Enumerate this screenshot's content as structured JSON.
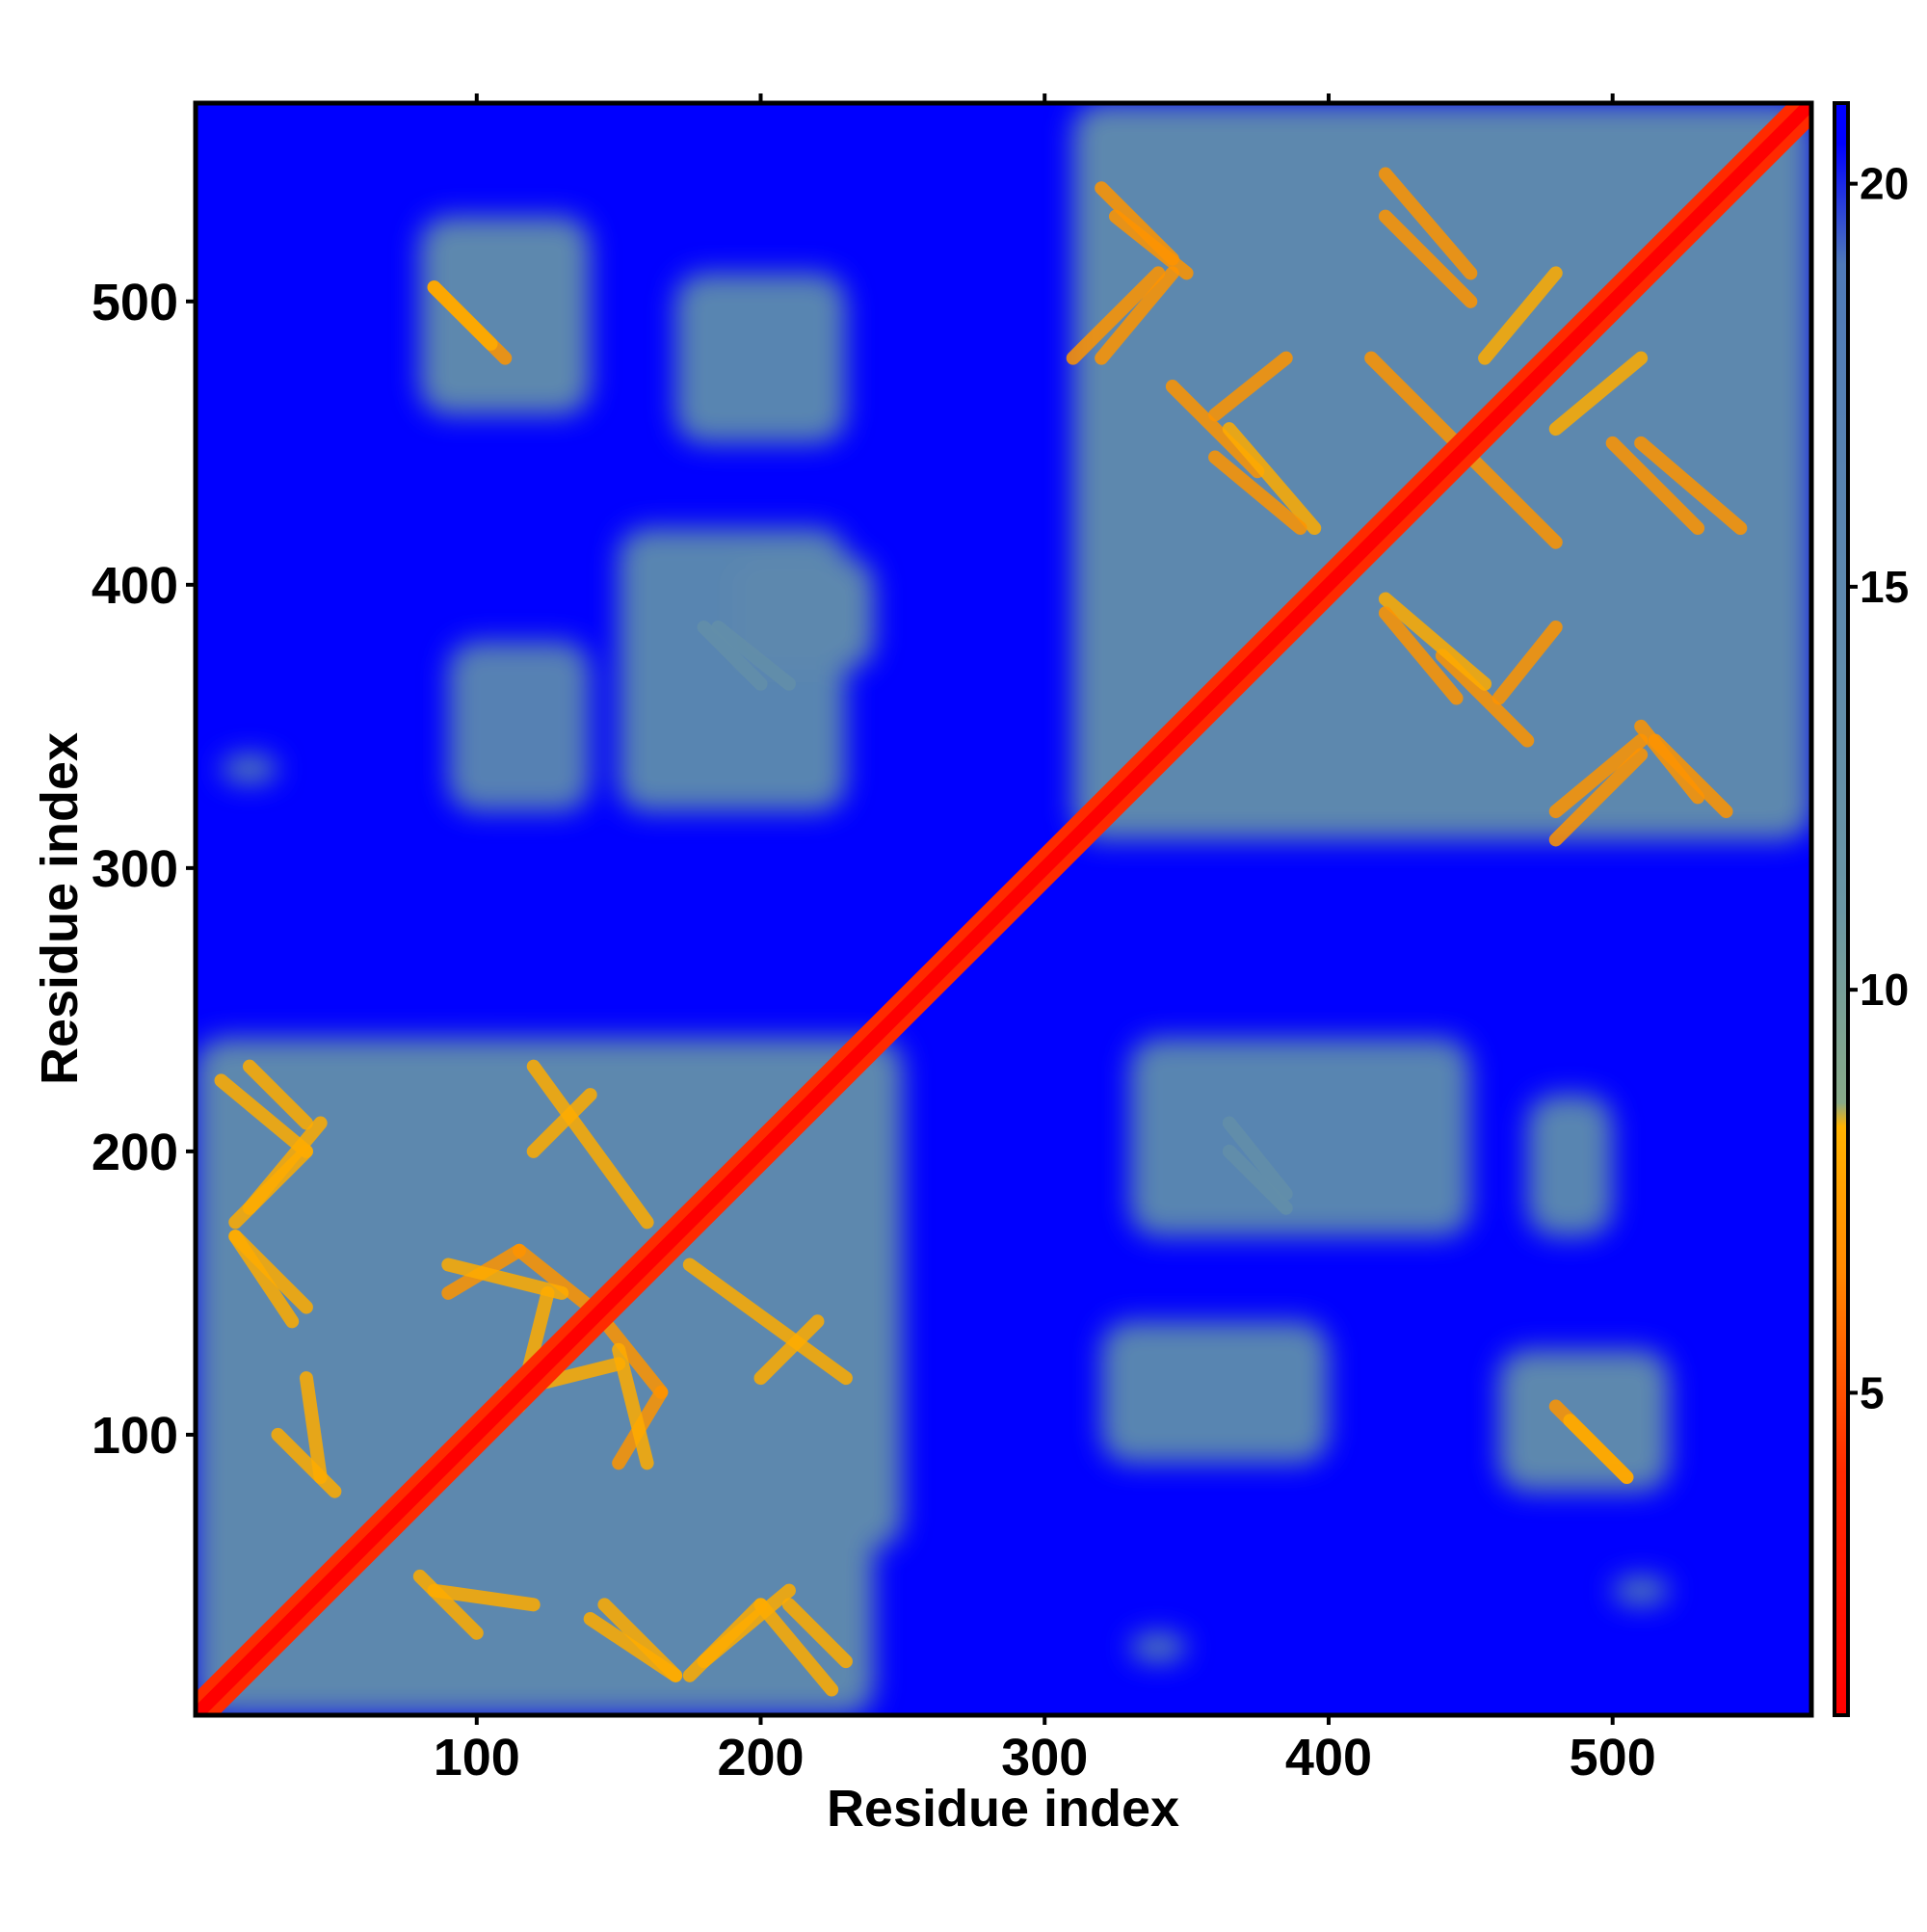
{
  "chart_data": {
    "type": "heatmap",
    "title": "",
    "xlabel": "Residue index",
    "ylabel": "Residue index",
    "xlim": [
      1,
      570
    ],
    "ylim": [
      1,
      570
    ],
    "x_ticks": [
      100,
      200,
      300,
      400,
      500
    ],
    "y_ticks": [
      100,
      200,
      300,
      400,
      500
    ],
    "colorbar": {
      "range": [
        1,
        21
      ],
      "ticks": [
        5,
        10,
        15,
        20
      ],
      "colors": [
        {
          "value": 1,
          "color": "#ff0000"
        },
        {
          "value": 4,
          "color": "#ff2a00"
        },
        {
          "value": 6.5,
          "color": "#ff8800"
        },
        {
          "value": 8.3,
          "color": "#ffb300"
        },
        {
          "value": 8.6,
          "color": "#88aa88"
        },
        {
          "value": 11,
          "color": "#6a96a4"
        },
        {
          "value": 19,
          "color": "#4f7ab8"
        },
        {
          "value": 20.5,
          "color": "#0000ff"
        },
        {
          "value": 21,
          "color": "#0000ff"
        }
      ]
    },
    "background_color": "#0000ff",
    "diagonal": {
      "start": 1,
      "end": 570,
      "core_value": 1,
      "band_value": 4
    },
    "contact_blocks": [
      {
        "x": [
          1,
          240
        ],
        "y": [
          1,
          240
        ],
        "value": 15
      },
      {
        "x": [
          310,
          570
        ],
        "y": [
          310,
          570
        ],
        "value": 15
      },
      {
        "x": [
          330,
          500
        ],
        "y": [
          380,
          550
        ],
        "value": 15
      },
      {
        "x": [
          410,
          570
        ],
        "y": [
          310,
          450
        ],
        "value": 15
      },
      {
        "x": [
          80,
          250
        ],
        "y": [
          60,
          240
        ],
        "value": 15
      },
      {
        "x": [
          1,
          120
        ],
        "y": [
          80,
          240
        ],
        "value": 15
      },
      {
        "x": [
          80,
          240
        ],
        "y": [
          1,
          60
        ],
        "value": 15
      },
      {
        "x": [
          80,
          140
        ],
        "y": [
          460,
          530
        ],
        "value": 15
      },
      {
        "x": [
          170,
          230
        ],
        "y": [
          450,
          510
        ],
        "value": 16
      },
      {
        "x": [
          90,
          140
        ],
        "y": [
          320,
          380
        ],
        "value": 17
      },
      {
        "x": [
          150,
          230
        ],
        "y": [
          320,
          420
        ],
        "value": 16
      },
      {
        "x": [
          190,
          240
        ],
        "y": [
          370,
          410
        ],
        "value": 15
      },
      {
        "x": [
          10,
          30
        ],
        "y": [
          330,
          340
        ],
        "value": 17
      },
      {
        "x": [
          320,
          400
        ],
        "y": [
          90,
          140
        ],
        "value": 16
      },
      {
        "x": [
          330,
          450
        ],
        "y": [
          170,
          240
        ],
        "value": 16
      },
      {
        "x": [
          460,
          520
        ],
        "y": [
          80,
          130
        ],
        "value": 15
      },
      {
        "x": [
          470,
          500
        ],
        "y": [
          170,
          220
        ],
        "value": 16
      },
      {
        "x": [
          330,
          350
        ],
        "y": [
          20,
          30
        ],
        "value": 17
      },
      {
        "x": [
          500,
          520
        ],
        "y": [
          40,
          50
        ],
        "value": 18
      }
    ],
    "contact_lines": [
      {
        "x1": 10,
        "y1": 225,
        "x2": 40,
        "y2": 200,
        "value": 8
      },
      {
        "x1": 40,
        "y1": 200,
        "x2": 15,
        "y2": 175,
        "value": 8
      },
      {
        "x1": 15,
        "y1": 170,
        "x2": 40,
        "y2": 145,
        "value": 8
      },
      {
        "x1": 40,
        "y1": 120,
        "x2": 45,
        "y2": 85,
        "value": 8
      },
      {
        "x1": 90,
        "y1": 150,
        "x2": 115,
        "y2": 165,
        "value": 7
      },
      {
        "x1": 115,
        "y1": 165,
        "x2": 140,
        "y2": 145,
        "value": 7
      },
      {
        "x1": 120,
        "y1": 230,
        "x2": 160,
        "y2": 175,
        "value": 8
      },
      {
        "x1": 150,
        "y1": 130,
        "x2": 160,
        "y2": 90,
        "value": 8
      },
      {
        "x1": 110,
        "y1": 115,
        "x2": 150,
        "y2": 125,
        "value": 8
      },
      {
        "x1": 200,
        "y1": 120,
        "x2": 220,
        "y2": 140,
        "value": 8
      },
      {
        "x1": 80,
        "y1": 50,
        "x2": 100,
        "y2": 30,
        "value": 8
      },
      {
        "x1": 140,
        "y1": 35,
        "x2": 170,
        "y2": 15,
        "value": 8
      },
      {
        "x1": 180,
        "y1": 20,
        "x2": 210,
        "y2": 45,
        "value": 8
      },
      {
        "x1": 210,
        "y1": 40,
        "x2": 230,
        "y2": 20,
        "value": 8
      },
      {
        "x1": 85,
        "y1": 505,
        "x2": 110,
        "y2": 480,
        "value": 7
      },
      {
        "x1": 325,
        "y1": 530,
        "x2": 350,
        "y2": 510,
        "value": 7
      },
      {
        "x1": 320,
        "y1": 480,
        "x2": 345,
        "y2": 510,
        "value": 7
      },
      {
        "x1": 345,
        "y1": 470,
        "x2": 375,
        "y2": 440,
        "value": 7
      },
      {
        "x1": 365,
        "y1": 455,
        "x2": 395,
        "y2": 420,
        "value": 8
      },
      {
        "x1": 420,
        "y1": 545,
        "x2": 450,
        "y2": 510,
        "value": 7
      },
      {
        "x1": 415,
        "y1": 480,
        "x2": 445,
        "y2": 450,
        "value": 7
      },
      {
        "x1": 455,
        "y1": 480,
        "x2": 480,
        "y2": 510,
        "value": 8
      },
      {
        "x1": 500,
        "y1": 450,
        "x2": 530,
        "y2": 420,
        "value": 7
      },
      {
        "x1": 420,
        "y1": 390,
        "x2": 445,
        "y2": 360,
        "value": 7
      },
      {
        "x1": 460,
        "y1": 360,
        "x2": 480,
        "y2": 385,
        "value": 7
      },
      {
        "x1": 480,
        "y1": 310,
        "x2": 510,
        "y2": 340,
        "value": 7
      },
      {
        "x1": 515,
        "y1": 345,
        "x2": 540,
        "y2": 320,
        "value": 7
      },
      {
        "x1": 485,
        "y1": 105,
        "x2": 505,
        "y2": 85,
        "value": 8
      },
      {
        "x1": 365,
        "y1": 210,
        "x2": 385,
        "y2": 185,
        "value": 13
      },
      {
        "x1": 180,
        "y1": 385,
        "x2": 200,
        "y2": 365,
        "value": 13
      }
    ]
  }
}
